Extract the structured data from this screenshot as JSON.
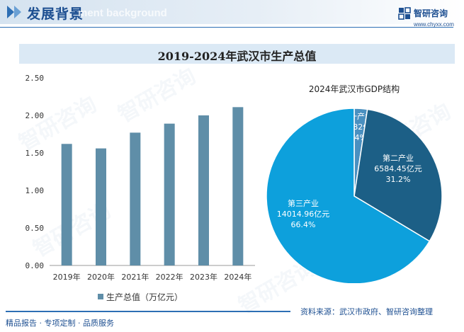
{
  "header": {
    "section_title": "发展背景",
    "section_ghost": "ment background",
    "logo_name": "智研咨询",
    "logo_url": "www.chyxx.com"
  },
  "watermark_text": "智研咨询",
  "colors": {
    "bar": "#5f8ea8",
    "pie_primary": "#4a90c0",
    "pie_secondary": "#1c5f86",
    "pie_tertiary": "#0da0dc",
    "accent": "#1d4f91"
  },
  "chart_data": [
    {
      "type": "bar",
      "title": "2019-2024年武汉市生产总值",
      "categories": [
        "2019年",
        "2020年",
        "2021年",
        "2022年",
        "2023年",
        "2024年"
      ],
      "values": [
        1.62,
        1.56,
        1.77,
        1.89,
        2.0,
        2.11
      ],
      "ylim": [
        0,
        2.5
      ],
      "yticks": [
        "0.00",
        "0.50",
        "1.00",
        "1.50",
        "2.00",
        "2.50"
      ],
      "xlabel": "",
      "ylabel": "",
      "legend": "生产总值（万亿元）",
      "legend_position": "bottom"
    },
    {
      "type": "pie",
      "title": "2024年武汉市GDP结构",
      "slices": [
        {
          "name": "第一产业",
          "value": 506.82,
          "value_label": "506.82亿元",
          "pct": "2.4%"
        },
        {
          "name": "第二产业",
          "value": 6584.45,
          "value_label": "6584.45亿元",
          "pct": "31.2%"
        },
        {
          "name": "第三产业",
          "value": 14014.96,
          "value_label": "14014.96亿元",
          "pct": "66.4%"
        }
      ]
    }
  ],
  "footer": {
    "left": "精品报告 · 专项定制 · 品质服务",
    "right": "资料来源：武汉市政府、智研咨询整理"
  }
}
